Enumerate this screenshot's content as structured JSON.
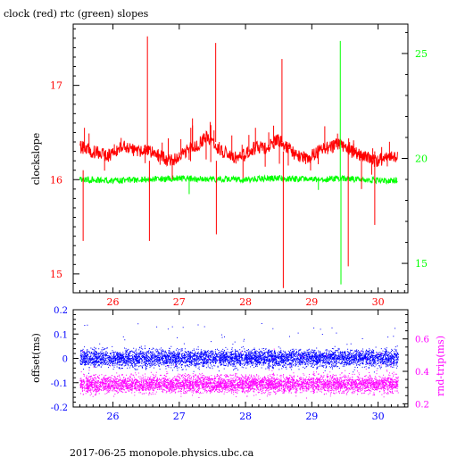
{
  "chart_data": [
    {
      "type": "line",
      "title": "clock (red) rtc (green) slopes",
      "ylabel": "clockslope",
      "xlim": [
        25.4,
        30.45
      ],
      "ylim": [
        14.8,
        17.65
      ],
      "y2lim": [
        13.6,
        26.4
      ],
      "x_ticks": [
        "26",
        "27",
        "28",
        "29",
        "30"
      ],
      "y_ticks": [
        "15",
        "16",
        "17"
      ],
      "y2_ticks": [
        "15",
        "20",
        "25"
      ],
      "colors": {
        "clock": "#ff0000",
        "rtc": "#00ff00",
        "axis_left": "#ff0000",
        "axis_right": "#00ff00",
        "frame": "#000000"
      },
      "series": [
        {
          "axis": "left",
          "color": "#ff0000",
          "x": [
            25.5,
            25.6,
            25.7,
            25.8,
            25.9,
            26.0,
            26.1,
            26.2,
            26.3,
            26.4,
            26.5,
            26.6,
            26.7,
            26.8,
            26.9,
            27.0,
            27.1,
            27.2,
            27.3,
            27.4,
            27.5,
            27.6,
            27.7,
            27.8,
            27.9,
            28.0,
            28.1,
            28.2,
            28.3,
            28.4,
            28.5,
            28.6,
            28.7,
            28.8,
            28.9,
            29.0,
            29.1,
            29.2,
            29.3,
            29.4,
            29.5,
            29.6,
            29.7,
            29.8,
            29.9,
            30.0,
            30.1,
            30.2,
            30.3
          ],
          "y": [
            16.35,
            16.32,
            16.3,
            16.28,
            16.25,
            16.28,
            16.33,
            16.35,
            16.32,
            16.3,
            16.33,
            16.28,
            16.25,
            16.22,
            16.2,
            16.25,
            16.3,
            16.35,
            16.38,
            16.45,
            16.4,
            16.32,
            16.28,
            16.25,
            16.22,
            16.27,
            16.32,
            16.35,
            16.33,
            16.38,
            16.42,
            16.36,
            16.3,
            16.25,
            16.22,
            16.25,
            16.3,
            16.33,
            16.35,
            16.38,
            16.34,
            16.3,
            16.27,
            16.25,
            16.22,
            16.2,
            16.22,
            16.24,
            16.23
          ]
        },
        {
          "axis": "right",
          "color": "#00ff00",
          "x": [
            25.5,
            26.0,
            26.5,
            27.0,
            27.5,
            28.0,
            28.5,
            29.0,
            29.5,
            30.0,
            30.3
          ],
          "y": [
            19.0,
            18.95,
            19.0,
            19.05,
            19.0,
            19.0,
            19.05,
            19.0,
            19.05,
            18.95,
            18.95
          ]
        }
      ],
      "spikes": [
        {
          "axis": "left",
          "color": "#ff0000",
          "x": 25.55,
          "y_from": 16.1,
          "y_to": 15.35
        },
        {
          "axis": "left",
          "color": "#ff0000",
          "x": 25.57,
          "y_from": 16.35,
          "y_to": 16.55
        },
        {
          "axis": "left",
          "color": "#ff0000",
          "x": 26.52,
          "y_from": 16.3,
          "y_to": 17.52
        },
        {
          "axis": "left",
          "color": "#ff0000",
          "x": 26.55,
          "y_from": 16.2,
          "y_to": 15.35
        },
        {
          "axis": "left",
          "color": "#ff0000",
          "x": 27.55,
          "y_from": 16.4,
          "y_to": 17.45
        },
        {
          "axis": "left",
          "color": "#ff0000",
          "x": 27.56,
          "y_from": 16.2,
          "y_to": 15.42
        },
        {
          "axis": "left",
          "color": "#ff0000",
          "x": 27.2,
          "y_from": 16.3,
          "y_to": 16.65
        },
        {
          "axis": "left",
          "color": "#ff0000",
          "x": 28.55,
          "y_from": 16.4,
          "y_to": 17.28
        },
        {
          "axis": "left",
          "color": "#ff0000",
          "x": 28.57,
          "y_from": 16.3,
          "y_to": 14.85
        },
        {
          "axis": "left",
          "color": "#ff0000",
          "x": 28.15,
          "y_from": 16.3,
          "y_to": 16.55
        },
        {
          "axis": "left",
          "color": "#ff0000",
          "x": 29.55,
          "y_from": 16.3,
          "y_to": 15.08
        },
        {
          "axis": "left",
          "color": "#ff0000",
          "x": 29.95,
          "y_from": 16.3,
          "y_to": 15.52
        },
        {
          "axis": "left",
          "color": "#ff0000",
          "x": 29.75,
          "y_from": 16.25,
          "y_to": 15.9
        },
        {
          "axis": "right",
          "color": "#00ff00",
          "x": 29.43,
          "y_from": 19.0,
          "y_to": 25.6
        },
        {
          "axis": "right",
          "color": "#00ff00",
          "x": 29.44,
          "y_from": 19.0,
          "y_to": 14.0
        },
        {
          "axis": "right",
          "color": "#00ff00",
          "x": 27.15,
          "y_from": 19.0,
          "y_to": 18.3
        },
        {
          "axis": "right",
          "color": "#00ff00",
          "x": 29.1,
          "y_from": 19.0,
          "y_to": 18.5
        }
      ]
    },
    {
      "type": "scatter",
      "xlabel": "",
      "ylabel": "offset(ms)",
      "y2label": "rnd-trip(ms)",
      "xlim": [
        25.4,
        30.45
      ],
      "ylim": [
        -0.2,
        0.2
      ],
      "y2lim": [
        0.18,
        0.78
      ],
      "x_ticks": [
        "26",
        "27",
        "28",
        "29",
        "30"
      ],
      "y_ticks": [
        "-0.2",
        "-0.1",
        "0",
        "0.1",
        "0.2"
      ],
      "y2_ticks": [
        "0.2",
        "0.4",
        "0.6"
      ],
      "colors": {
        "offset": "#0000ff",
        "rnd_trip": "#ff00ff",
        "axis_left": "#0000ff",
        "axis_right": "#ff00ff"
      },
      "series": [
        {
          "name": "offset(ms)",
          "axis": "left",
          "color": "#0000ff",
          "x_range": [
            25.5,
            30.3
          ],
          "y_center": 0.0,
          "y_spread": 0.03
        },
        {
          "name": "rnd-trip(ms)",
          "axis": "right",
          "color": "#ff00ff",
          "x_range": [
            25.5,
            30.3
          ],
          "y_center": 0.32,
          "y_spread": 0.045
        }
      ]
    }
  ],
  "footer": "2017-06-25 monopole.physics.ubc.ca"
}
